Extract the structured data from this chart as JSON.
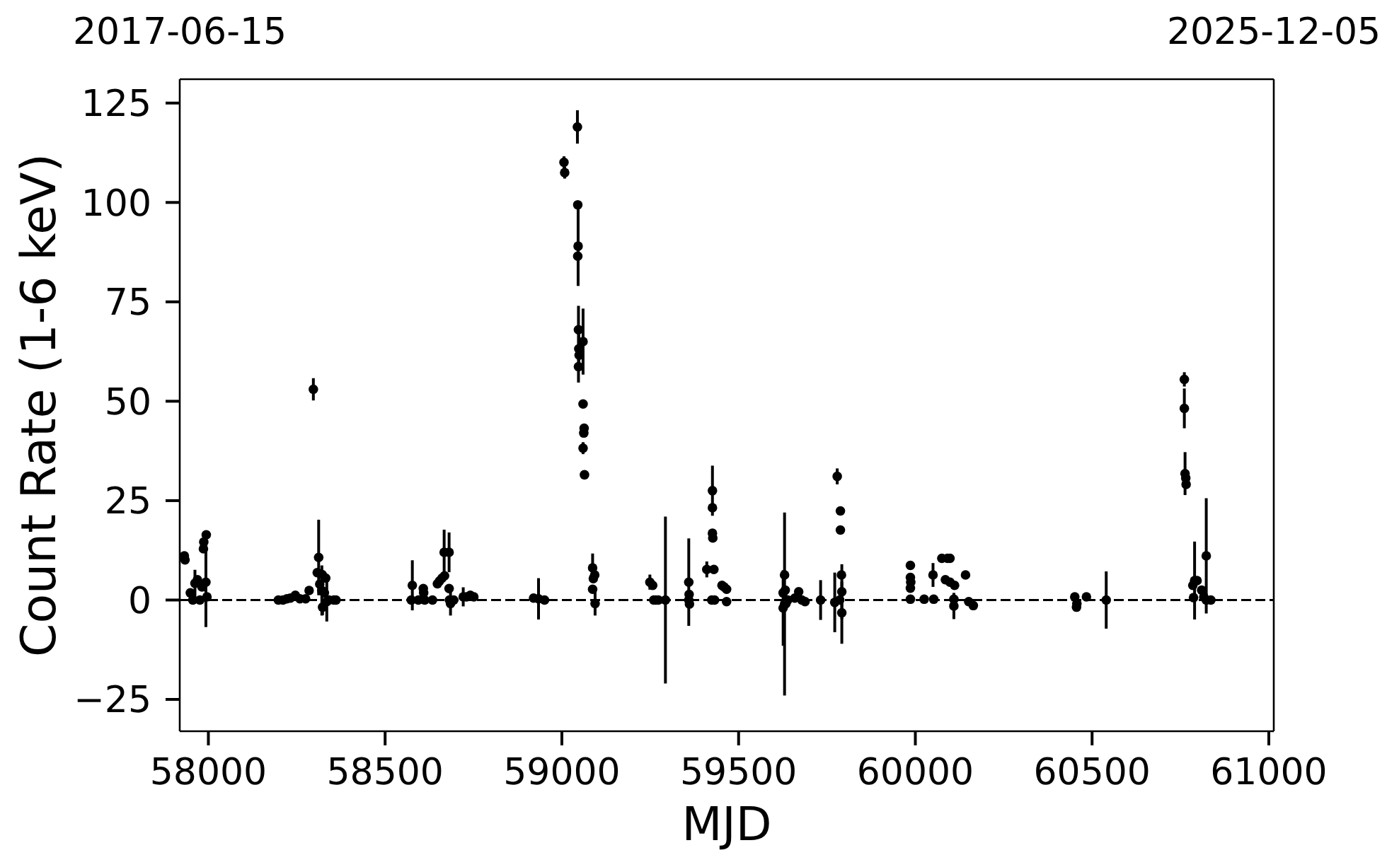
{
  "chart_data": {
    "type": "scatter",
    "xlabel": "MJD",
    "ylabel": "Count Rate (1-6 keV)",
    "color": "#000000",
    "marker": "circle",
    "xlim": [
      57919,
      61014
    ],
    "xticks": [
      58000,
      58500,
      59000,
      59500,
      60000,
      60500,
      61000
    ],
    "x2lim": [
      "2017-06-15",
      "2025-12-05"
    ],
    "x2ticks": [
      "2017-06-15",
      "2025-12-05"
    ],
    "ylim": [
      -33,
      131
    ],
    "yticks": [
      -25,
      0,
      25,
      50,
      75,
      100,
      125
    ],
    "ref_lines": [
      {
        "axis": "y",
        "value": 0,
        "color": "#000000",
        "line_style": "dashed"
      }
    ],
    "x": [
      57932,
      57934,
      57949,
      57956,
      57962,
      57969,
      57976,
      57982,
      57986,
      57987,
      57993,
      57994,
      57996,
      58198,
      58211,
      58222,
      58232,
      58246,
      58259,
      58275,
      58285,
      58297,
      58308,
      58312,
      58315,
      58321,
      58322,
      58323,
      58328,
      58332,
      58335,
      58341,
      58355,
      58361,
      58574,
      58577,
      58594,
      58608,
      58609,
      58612,
      58634,
      58648,
      58654,
      58661,
      58667,
      58668,
      58681,
      58681,
      58682,
      58685,
      58694,
      58721,
      58730,
      58741,
      58751,
      58920,
      58934,
      58951,
      59006,
      59008,
      59044,
      59045,
      59046,
      59045,
      59047,
      59047,
      59048,
      59049,
      59060,
      59060,
      59062,
      59063,
      59060,
      59064,
      59087,
      59087,
      59089,
      59093,
      59094,
      59249,
      59257,
      59260,
      59266,
      59273,
      59293,
      59359,
      59359,
      59360,
      59361,
      59410,
      59424,
      59426,
      59426,
      59426,
      59427,
      59430,
      59432,
      59453,
      59459,
      59466,
      59466,
      59626,
      59626,
      59630,
      59630,
      59632,
      59634,
      59639,
      59659,
      59670,
      59679,
      59688,
      59732,
      59772,
      59779,
      59786,
      59788,
      59788,
      59791,
      59792,
      59792,
      59986,
      59986,
      59987,
      59986,
      59986,
      60025,
      60050,
      60052,
      60075,
      60085,
      60091,
      60098,
      60098,
      60109,
      60109,
      60111,
      60142,
      60151,
      60164,
      60451,
      60456,
      60457,
      60484,
      60540,
      60761,
      60761,
      60763,
      60765,
      60766,
      60785,
      60787,
      60790,
      60797,
      60810,
      60816,
      60823,
      60823,
      60836
    ],
    "values": [
      11.1,
      10.1,
      1.8,
      0,
      4.2,
      5.1,
      0,
      3.3,
      12.9,
      14.6,
      4.5,
      16.4,
      0.8,
      0,
      0,
      0.3,
      0.5,
      1.2,
      0.3,
      0.3,
      2.4,
      53.0,
      6.9,
      10.7,
      4.0,
      2.4,
      6.4,
      -1.8,
      1.8,
      5.5,
      -0.4,
      0,
      0,
      0,
      0,
      3.7,
      0,
      2.9,
      1.8,
      0,
      0,
      4.1,
      4.8,
      5.5,
      12.0,
      6.1,
      12.0,
      2.9,
      0,
      -0.9,
      0,
      0.8,
      0.8,
      1.2,
      0.8,
      0.5,
      0.3,
      0,
      110.1,
      107.5,
      119.0,
      99.4,
      89.0,
      86.5,
      68.0,
      58.7,
      63.2,
      61.6,
      65.0,
      49.3,
      42.0,
      43.2,
      38.2,
      31.5,
      8.1,
      2.7,
      5.4,
      6.3,
      -0.9,
      4.5,
      3.7,
      0,
      0,
      0,
      0,
      4.5,
      0,
      1.4,
      -1.0,
      7.7,
      0,
      27.5,
      23.2,
      16.8,
      15.6,
      7.7,
      0,
      3.7,
      3.3,
      2.7,
      -0.4,
      1.8,
      -2.0,
      -1.0,
      6.3,
      2.5,
      -0.9,
      0,
      0.5,
      2.1,
      0,
      -0.4,
      0,
      -0.6,
      31.1,
      0,
      22.4,
      17.6,
      6.3,
      2.1,
      -3.2,
      8.7,
      5.7,
      4.5,
      3.0,
      0.2,
      0.2,
      6.3,
      0.2,
      10.5,
      5.1,
      10.5,
      10.5,
      4.5,
      0.2,
      -1.5,
      3.7,
      6.3,
      -0.4,
      -1.4,
      0.8,
      -1.8,
      -0.9,
      0.8,
      0,
      55.5,
      48.2,
      31.8,
      30.7,
      29.1,
      3.7,
      0.6,
      4.9,
      4.9,
      2.5,
      0.8,
      11.1,
      0,
      0
    ],
    "errors": [
      null,
      null,
      null,
      null,
      3.4,
      null,
      null,
      null,
      null,
      null,
      11.3,
      null,
      null,
      null,
      null,
      null,
      null,
      null,
      null,
      null,
      null,
      2.8,
      null,
      9.5,
      null,
      6.3,
      null,
      2,
      null,
      null,
      5,
      null,
      null,
      null,
      null,
      6.3,
      null,
      null,
      null,
      null,
      null,
      null,
      null,
      null,
      5.7,
      null,
      5,
      null,
      null,
      3,
      null,
      2.4,
      null,
      null,
      null,
      null,
      5.2,
      null,
      1.5,
      1.5,
      4.2,
      null,
      10,
      null,
      6,
      4,
      5,
      null,
      8.3,
      null,
      null,
      null,
      1.5,
      null,
      3.6,
      null,
      null,
      null,
      3,
      1.9,
      null,
      null,
      null,
      null,
      21,
      11,
      null,
      null,
      null,
      2,
      null,
      6.3,
      null,
      null,
      null,
      null,
      null,
      null,
      null,
      null,
      null,
      null,
      9.5,
      23,
      null,
      null,
      null,
      null,
      null,
      null,
      null,
      null,
      5,
      7.5,
      2,
      null,
      null,
      null,
      null,
      6.9,
      7.8,
      null,
      null,
      null,
      null,
      null,
      null,
      3,
      null,
      null,
      null,
      null,
      null,
      null,
      null,
      3.3,
      null,
      null,
      null,
      null,
      null,
      null,
      null,
      null,
      7.2,
      1.8,
      5,
      5.4,
      null,
      null,
      null,
      null,
      9.8,
      null,
      null,
      null,
      14.5,
      null,
      null
    ]
  }
}
